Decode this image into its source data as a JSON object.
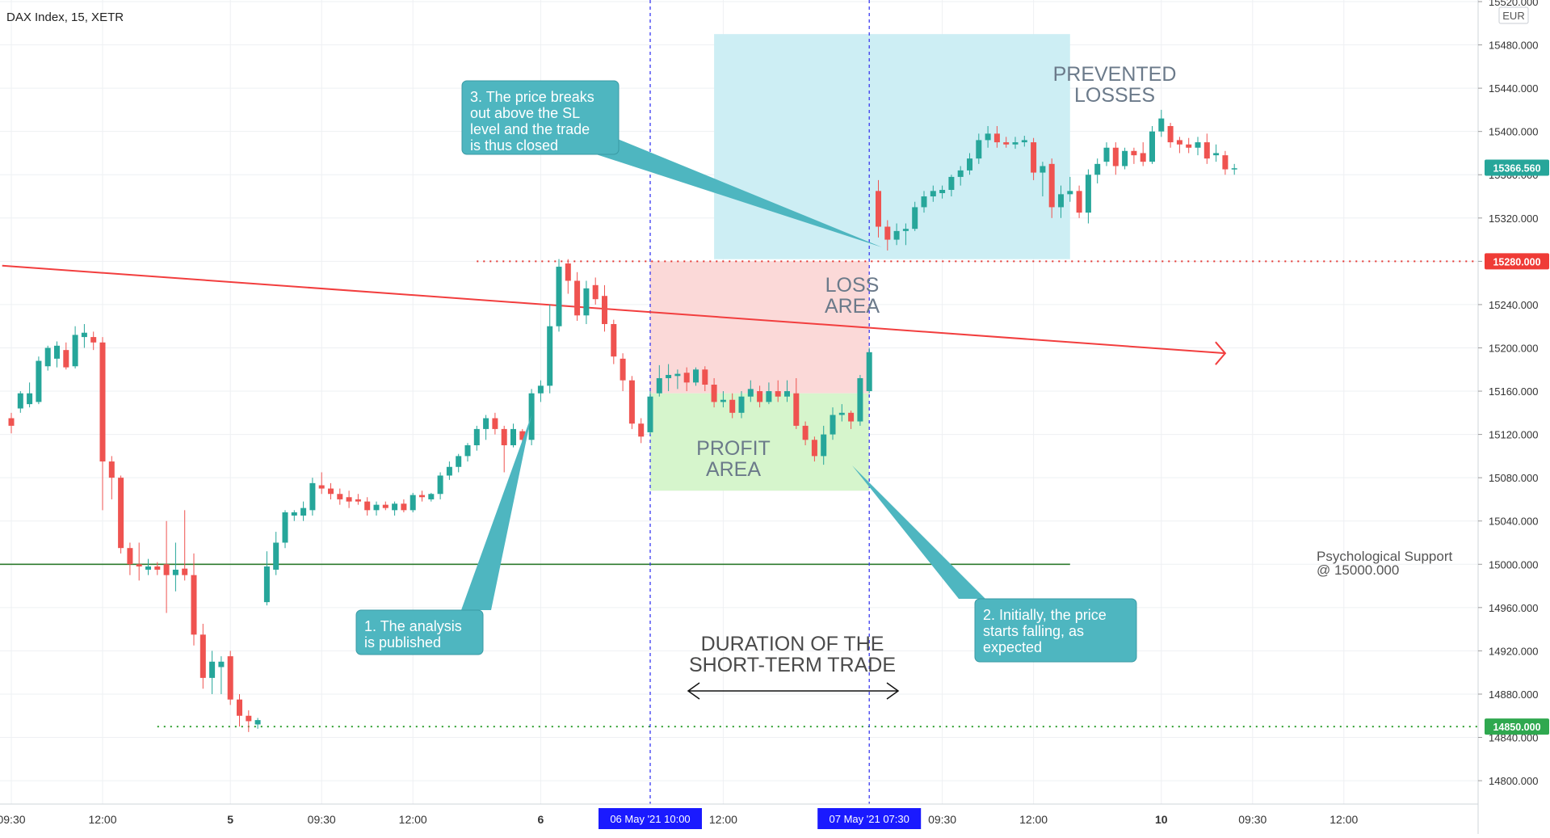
{
  "header": {
    "symbol": "DAX Index, 15, XETR",
    "currency": "EUR"
  },
  "colors": {
    "bull": "#26a69a",
    "bear": "#ef5350",
    "trendline": "#f23e3e",
    "support": "#2d7a2d",
    "profit_zone": "#d6f5cc",
    "loss_zone": "#fbd9d8",
    "prevented_zone": "#cdeef4",
    "callout": "#4eb6c0",
    "date_tag": "#1a1aff",
    "last_price_tag": "#26a69a"
  },
  "annotations": {
    "callout1": [
      "1. The analysis",
      "is published"
    ],
    "callout2": [
      "2. Initially, the price",
      "starts falling, as",
      "expected"
    ],
    "callout3": [
      "3. The price breaks",
      "out above the SL",
      "level and the trade",
      "is thus closed"
    ],
    "loss_area": [
      "LOSS",
      "AREA"
    ],
    "profit_area": [
      "PROFIT",
      "AREA"
    ],
    "prevented": [
      "PREVENTED",
      "LOSSES"
    ],
    "duration": [
      "DURATION OF THE",
      "SHORT-TERM TRADE"
    ],
    "support": [
      "Psychological Support",
      "@ 15000.000"
    ]
  },
  "chart_data": {
    "type": "candlestick",
    "title": "DAX Index, 15, XETR",
    "unit": "EUR",
    "ylim": [
      14770,
      15530
    ],
    "y_ticks": [
      "15520.000",
      "15480.000",
      "15440.000",
      "15400.000",
      "15360.000",
      "15320.000",
      "15280.000",
      "15240.000",
      "15200.000",
      "15160.000",
      "15120.000",
      "15080.000",
      "15040.000",
      "15000.000",
      "14960.000",
      "14920.000",
      "14880.000",
      "14840.000",
      "14800.000"
    ],
    "x_ticks": [
      {
        "label": "09:30",
        "bar": 0,
        "bold": false
      },
      {
        "label": "12:00",
        "bar": 10,
        "bold": false
      },
      {
        "label": "5",
        "bar": 24,
        "bold": true
      },
      {
        "label": "09:30",
        "bar": 34,
        "bold": false
      },
      {
        "label": "12:00",
        "bar": 44,
        "bold": false
      },
      {
        "label": "6",
        "bar": 58,
        "bold": true
      },
      {
        "label": "12:00",
        "bar": 78,
        "bold": false
      },
      {
        "label": "09:30",
        "bar": 102,
        "bold": false
      },
      {
        "label": "12:00",
        "bar": 112,
        "bold": false
      },
      {
        "label": "10",
        "bar": 126,
        "bold": true
      },
      {
        "label": "09:30",
        "bar": 136,
        "bold": false
      },
      {
        "label": "12:00",
        "bar": 146,
        "bold": false
      }
    ],
    "date_tags": [
      {
        "label": "06 May '21   10:00",
        "bar": 70
      },
      {
        "label": "07 May '21   07:30",
        "bar": 94
      }
    ],
    "price_tags": [
      {
        "label": "15366.560",
        "value": 15366.56,
        "kind": "last"
      },
      {
        "label": "15280.000",
        "value": 15280,
        "kind": "stop"
      },
      {
        "label": "14850.000",
        "value": 14850,
        "kind": "target"
      }
    ],
    "levels": {
      "stop_loss": 15280,
      "entry": 15158,
      "take_profit": 15068,
      "support": 15000,
      "target": 14850
    },
    "trendline": {
      "from": {
        "bar": -1,
        "value": 15276
      },
      "to": {
        "bar": 133,
        "value": 15195
      }
    },
    "candles": [
      {
        "o": 15135,
        "h": 15140,
        "l": 15121,
        "c": 15128
      },
      {
        "o": 15144,
        "h": 15160,
        "l": 15140,
        "c": 15158
      },
      {
        "o": 15148,
        "h": 15168,
        "l": 15145,
        "c": 15158
      },
      {
        "o": 15150,
        "h": 15192,
        "l": 15148,
        "c": 15188
      },
      {
        "o": 15183,
        "h": 15202,
        "l": 15179,
        "c": 15200
      },
      {
        "o": 15190,
        "h": 15206,
        "l": 15182,
        "c": 15202
      },
      {
        "o": 15198,
        "h": 15205,
        "l": 15180,
        "c": 15182
      },
      {
        "o": 15183,
        "h": 15220,
        "l": 15181,
        "c": 15212
      },
      {
        "o": 15210,
        "h": 15222,
        "l": 15200,
        "c": 15214
      },
      {
        "o": 15210,
        "h": 15215,
        "l": 15198,
        "c": 15205
      },
      {
        "o": 15205,
        "h": 15210,
        "l": 15050,
        "c": 15095
      },
      {
        "o": 15095,
        "h": 15100,
        "l": 15060,
        "c": 15080
      },
      {
        "o": 15080,
        "h": 15082,
        "l": 15010,
        "c": 15015
      },
      {
        "o": 15015,
        "h": 15020,
        "l": 14990,
        "c": 15000
      },
      {
        "o": 15000,
        "h": 15020,
        "l": 14985,
        "c": 14998
      },
      {
        "o": 14995,
        "h": 15005,
        "l": 14990,
        "c": 14998
      },
      {
        "o": 14998,
        "h": 15002,
        "l": 14990,
        "c": 14995
      },
      {
        "o": 15000,
        "h": 15040,
        "l": 14955,
        "c": 14990
      },
      {
        "o": 14990,
        "h": 15020,
        "l": 14975,
        "c": 14995
      },
      {
        "o": 14996,
        "h": 15050,
        "l": 14985,
        "c": 14990
      },
      {
        "o": 14990,
        "h": 15010,
        "l": 14925,
        "c": 14935
      },
      {
        "o": 14935,
        "h": 14945,
        "l": 14885,
        "c": 14895
      },
      {
        "o": 14895,
        "h": 14920,
        "l": 14880,
        "c": 14910
      },
      {
        "o": 14905,
        "h": 14915,
        "l": 14880,
        "c": 14910
      },
      {
        "o": 14915,
        "h": 14920,
        "l": 14870,
        "c": 14875
      },
      {
        "o": 14875,
        "h": 14880,
        "l": 14850,
        "c": 14860
      },
      {
        "o": 14860,
        "h": 14865,
        "l": 14845,
        "c": 14855
      },
      {
        "o": 14852,
        "h": 14858,
        "l": 14848,
        "c": 14856
      },
      {
        "o": 14965,
        "h": 15012,
        "l": 14962,
        "c": 14998
      },
      {
        "o": 14995,
        "h": 15030,
        "l": 14990,
        "c": 15020
      },
      {
        "o": 15020,
        "h": 15050,
        "l": 15015,
        "c": 15048
      },
      {
        "o": 15045,
        "h": 15050,
        "l": 15040,
        "c": 15048
      },
      {
        "o": 15045,
        "h": 15058,
        "l": 15040,
        "c": 15052
      },
      {
        "o": 15050,
        "h": 15080,
        "l": 15045,
        "c": 15075
      },
      {
        "o": 15073,
        "h": 15085,
        "l": 15065,
        "c": 15070
      },
      {
        "o": 15070,
        "h": 15075,
        "l": 15060,
        "c": 15065
      },
      {
        "o": 15065,
        "h": 15070,
        "l": 15055,
        "c": 15060
      },
      {
        "o": 15062,
        "h": 15068,
        "l": 15052,
        "c": 15058
      },
      {
        "o": 15060,
        "h": 15065,
        "l": 15055,
        "c": 15058
      },
      {
        "o": 15058,
        "h": 15062,
        "l": 15045,
        "c": 15050
      },
      {
        "o": 15050,
        "h": 15058,
        "l": 15045,
        "c": 15055
      },
      {
        "o": 15055,
        "h": 15058,
        "l": 15050,
        "c": 15052
      },
      {
        "o": 15050,
        "h": 15058,
        "l": 15045,
        "c": 15056
      },
      {
        "o": 15056,
        "h": 15060,
        "l": 15048,
        "c": 15050
      },
      {
        "o": 15050,
        "h": 15066,
        "l": 15048,
        "c": 15064
      },
      {
        "o": 15064,
        "h": 15068,
        "l": 15058,
        "c": 15062
      },
      {
        "o": 15060,
        "h": 15066,
        "l": 15058,
        "c": 15065
      },
      {
        "o": 15065,
        "h": 15085,
        "l": 15060,
        "c": 15082
      },
      {
        "o": 15082,
        "h": 15095,
        "l": 15078,
        "c": 15090
      },
      {
        "o": 15090,
        "h": 15102,
        "l": 15085,
        "c": 15100
      },
      {
        "o": 15100,
        "h": 15112,
        "l": 15095,
        "c": 15110
      },
      {
        "o": 15110,
        "h": 15128,
        "l": 15105,
        "c": 15125
      },
      {
        "o": 15125,
        "h": 15138,
        "l": 15115,
        "c": 15135
      },
      {
        "o": 15135,
        "h": 15140,
        "l": 15120,
        "c": 15125
      },
      {
        "o": 15125,
        "h": 15128,
        "l": 15085,
        "c": 15110
      },
      {
        "o": 15110,
        "h": 15130,
        "l": 15108,
        "c": 15125
      },
      {
        "o": 15123,
        "h": 15125,
        "l": 15112,
        "c": 15115
      },
      {
        "o": 15115,
        "h": 15162,
        "l": 15110,
        "c": 15158
      },
      {
        "o": 15158,
        "h": 15170,
        "l": 15150,
        "c": 15165
      },
      {
        "o": 15165,
        "h": 15240,
        "l": 15158,
        "c": 15220
      },
      {
        "o": 15220,
        "h": 15282,
        "l": 15215,
        "c": 15275
      },
      {
        "o": 15278,
        "h": 15282,
        "l": 15250,
        "c": 15262
      },
      {
        "o": 15262,
        "h": 15270,
        "l": 15225,
        "c": 15230
      },
      {
        "o": 15230,
        "h": 15262,
        "l": 15222,
        "c": 15255
      },
      {
        "o": 15258,
        "h": 15265,
        "l": 15240,
        "c": 15245
      },
      {
        "o": 15248,
        "h": 15258,
        "l": 15215,
        "c": 15222
      },
      {
        "o": 15222,
        "h": 15226,
        "l": 15185,
        "c": 15192
      },
      {
        "o": 15190,
        "h": 15195,
        "l": 15160,
        "c": 15170
      },
      {
        "o": 15170,
        "h": 15174,
        "l": 15125,
        "c": 15130
      },
      {
        "o": 15130,
        "h": 15135,
        "l": 15112,
        "c": 15118
      },
      {
        "o": 15122,
        "h": 15160,
        "l": 15120,
        "c": 15155
      },
      {
        "o": 15158,
        "h": 15184,
        "l": 15155,
        "c": 15172
      },
      {
        "o": 15172,
        "h": 15185,
        "l": 15160,
        "c": 15175
      },
      {
        "o": 15174,
        "h": 15180,
        "l": 15162,
        "c": 15176
      },
      {
        "o": 15177,
        "h": 15182,
        "l": 15160,
        "c": 15168
      },
      {
        "o": 15168,
        "h": 15182,
        "l": 15165,
        "c": 15180
      },
      {
        "o": 15180,
        "h": 15183,
        "l": 15160,
        "c": 15166
      },
      {
        "o": 15166,
        "h": 15172,
        "l": 15145,
        "c": 15150
      },
      {
        "o": 15150,
        "h": 15160,
        "l": 15145,
        "c": 15152
      },
      {
        "o": 15152,
        "h": 15158,
        "l": 15135,
        "c": 15140
      },
      {
        "o": 15140,
        "h": 15160,
        "l": 15135,
        "c": 15155
      },
      {
        "o": 15155,
        "h": 15170,
        "l": 15150,
        "c": 15162
      },
      {
        "o": 15160,
        "h": 15165,
        "l": 15145,
        "c": 15150
      },
      {
        "o": 15150,
        "h": 15168,
        "l": 15148,
        "c": 15160
      },
      {
        "o": 15160,
        "h": 15170,
        "l": 15150,
        "c": 15155
      },
      {
        "o": 15155,
        "h": 15170,
        "l": 15150,
        "c": 15160
      },
      {
        "o": 15158,
        "h": 15172,
        "l": 15125,
        "c": 15128
      },
      {
        "o": 15128,
        "h": 15132,
        "l": 15110,
        "c": 15115
      },
      {
        "o": 15115,
        "h": 15118,
        "l": 15095,
        "c": 15100
      },
      {
        "o": 15100,
        "h": 15128,
        "l": 15092,
        "c": 15120
      },
      {
        "o": 15120,
        "h": 15145,
        "l": 15115,
        "c": 15138
      },
      {
        "o": 15138,
        "h": 15148,
        "l": 15132,
        "c": 15140
      },
      {
        "o": 15140,
        "h": 15142,
        "l": 15125,
        "c": 15132
      },
      {
        "o": 15132,
        "h": 15175,
        "l": 15128,
        "c": 15172
      },
      {
        "o": 15160,
        "h": 15200,
        "l": 15158,
        "c": 15196
      },
      {
        "o": 15345,
        "h": 15355,
        "l": 15302,
        "c": 15312
      },
      {
        "o": 15312,
        "h": 15318,
        "l": 15290,
        "c": 15300
      },
      {
        "o": 15300,
        "h": 15315,
        "l": 15295,
        "c": 15308
      },
      {
        "o": 15308,
        "h": 15315,
        "l": 15295,
        "c": 15310
      },
      {
        "o": 15310,
        "h": 15335,
        "l": 15308,
        "c": 15330
      },
      {
        "o": 15330,
        "h": 15345,
        "l": 15325,
        "c": 15340
      },
      {
        "o": 15340,
        "h": 15350,
        "l": 15335,
        "c": 15345
      },
      {
        "o": 15343,
        "h": 15350,
        "l": 15338,
        "c": 15346
      },
      {
        "o": 15346,
        "h": 15360,
        "l": 15340,
        "c": 15358
      },
      {
        "o": 15358,
        "h": 15368,
        "l": 15350,
        "c": 15364
      },
      {
        "o": 15364,
        "h": 15380,
        "l": 15360,
        "c": 15375
      },
      {
        "o": 15375,
        "h": 15398,
        "l": 15370,
        "c": 15392
      },
      {
        "o": 15392,
        "h": 15405,
        "l": 15385,
        "c": 15398
      },
      {
        "o": 15398,
        "h": 15405,
        "l": 15385,
        "c": 15390
      },
      {
        "o": 15390,
        "h": 15395,
        "l": 15385,
        "c": 15388
      },
      {
        "o": 15388,
        "h": 15395,
        "l": 15384,
        "c": 15390
      },
      {
        "o": 15390,
        "h": 15396,
        "l": 15386,
        "c": 15392
      },
      {
        "o": 15390,
        "h": 15394,
        "l": 15355,
        "c": 15362
      },
      {
        "o": 15362,
        "h": 15372,
        "l": 15340,
        "c": 15368
      },
      {
        "o": 15370,
        "h": 15375,
        "l": 15320,
        "c": 15330
      },
      {
        "o": 15330,
        "h": 15350,
        "l": 15320,
        "c": 15342
      },
      {
        "o": 15342,
        "h": 15358,
        "l": 15335,
        "c": 15345
      },
      {
        "o": 15345,
        "h": 15350,
        "l": 15320,
        "c": 15325
      },
      {
        "o": 15325,
        "h": 15365,
        "l": 15315,
        "c": 15360
      },
      {
        "o": 15360,
        "h": 15375,
        "l": 15352,
        "c": 15370
      },
      {
        "o": 15372,
        "h": 15390,
        "l": 15368,
        "c": 15385
      },
      {
        "o": 15385,
        "h": 15390,
        "l": 15360,
        "c": 15368
      },
      {
        "o": 15368,
        "h": 15385,
        "l": 15365,
        "c": 15382
      },
      {
        "o": 15382,
        "h": 15385,
        "l": 15370,
        "c": 15378
      },
      {
        "o": 15380,
        "h": 15390,
        "l": 15368,
        "c": 15372
      },
      {
        "o": 15372,
        "h": 15405,
        "l": 15370,
        "c": 15400
      },
      {
        "o": 15400,
        "h": 15420,
        "l": 15395,
        "c": 15412
      },
      {
        "o": 15405,
        "h": 15408,
        "l": 15385,
        "c": 15390
      },
      {
        "o": 15392,
        "h": 15395,
        "l": 15380,
        "c": 15388
      },
      {
        "o": 15388,
        "h": 15394,
        "l": 15380,
        "c": 15385
      },
      {
        "o": 15385,
        "h": 15395,
        "l": 15378,
        "c": 15390
      },
      {
        "o": 15390,
        "h": 15398,
        "l": 15370,
        "c": 15375
      },
      {
        "o": 15378,
        "h": 15388,
        "l": 15372,
        "c": 15380
      },
      {
        "o": 15378,
        "h": 15382,
        "l": 15360,
        "c": 15365
      },
      {
        "o": 15365,
        "h": 15370,
        "l": 15360,
        "c": 15366
      }
    ]
  }
}
